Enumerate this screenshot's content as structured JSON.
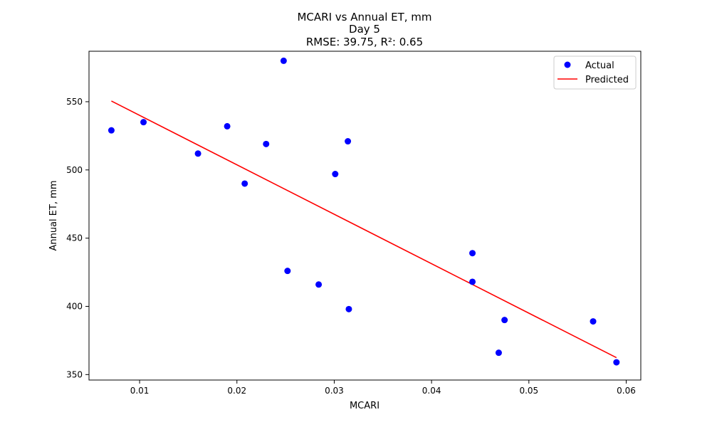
{
  "chart_data": {
    "type": "scatter",
    "title_lines": [
      "MCARI vs Annual ET, mm",
      "Day 5",
      "RMSE: 39.75, R²: 0.65"
    ],
    "xlabel": "MCARI",
    "ylabel": "Annual ET, mm",
    "xlim": [
      0.0048,
      0.0615
    ],
    "ylim": [
      346,
      587
    ],
    "xticks": [
      0.01,
      0.02,
      0.03,
      0.04,
      0.05,
      0.06
    ],
    "xtick_labels": [
      "0.01",
      "0.02",
      "0.03",
      "0.04",
      "0.05",
      "0.06"
    ],
    "yticks": [
      350,
      400,
      450,
      500,
      550
    ],
    "ytick_labels": [
      "350",
      "400",
      "450",
      "500",
      "550"
    ],
    "grid": false,
    "legend_position": "top-right",
    "series": [
      {
        "name": "Actual",
        "kind": "scatter",
        "color": "#0000ff",
        "points": [
          {
            "x": 0.0071,
            "y": 529
          },
          {
            "x": 0.0104,
            "y": 535
          },
          {
            "x": 0.016,
            "y": 512
          },
          {
            "x": 0.019,
            "y": 532
          },
          {
            "x": 0.0208,
            "y": 490
          },
          {
            "x": 0.023,
            "y": 519
          },
          {
            "x": 0.0248,
            "y": 580
          },
          {
            "x": 0.0252,
            "y": 426
          },
          {
            "x": 0.0284,
            "y": 416
          },
          {
            "x": 0.0301,
            "y": 497
          },
          {
            "x": 0.0314,
            "y": 521
          },
          {
            "x": 0.0315,
            "y": 398
          },
          {
            "x": 0.0442,
            "y": 439
          },
          {
            "x": 0.0442,
            "y": 418
          },
          {
            "x": 0.0469,
            "y": 366
          },
          {
            "x": 0.0475,
            "y": 390
          },
          {
            "x": 0.0566,
            "y": 389
          },
          {
            "x": 0.059,
            "y": 359
          }
        ]
      },
      {
        "name": "Predicted",
        "kind": "line",
        "color": "#ff0000",
        "points": [
          {
            "x": 0.0071,
            "y": 550.5
          },
          {
            "x": 0.059,
            "y": 362.4
          }
        ]
      }
    ]
  }
}
